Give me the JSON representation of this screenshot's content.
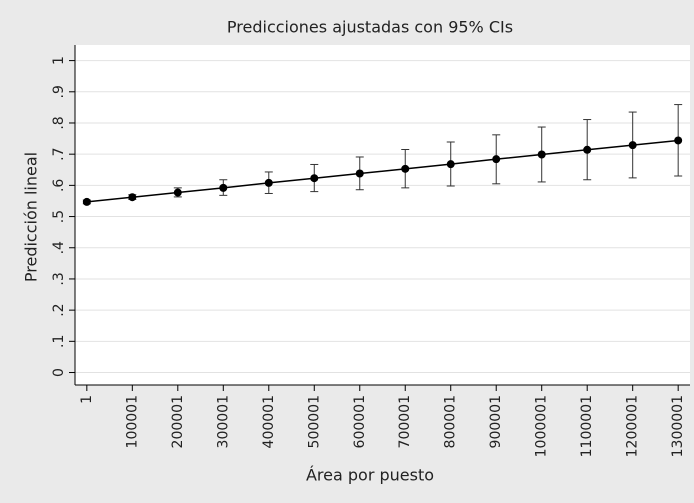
{
  "chart_data": {
    "type": "line",
    "title": "Predicciones ajustadas con 95% CIs",
    "xlabel": "Área por puesto",
    "ylabel": "Predicción lineal",
    "x": [
      1,
      100001,
      200001,
      300001,
      400001,
      500001,
      600001,
      700001,
      800001,
      900001,
      1000001,
      1100001,
      1200001,
      1300001
    ],
    "values": [
      0.547,
      0.562,
      0.577,
      0.592,
      0.608,
      0.623,
      0.638,
      0.653,
      0.668,
      0.684,
      0.699,
      0.714,
      0.729,
      0.744
    ],
    "lower": [
      0.541,
      0.555,
      0.563,
      0.568,
      0.574,
      0.58,
      0.586,
      0.592,
      0.598,
      0.605,
      0.611,
      0.618,
      0.624,
      0.63
    ],
    "upper": [
      0.553,
      0.57,
      0.592,
      0.618,
      0.643,
      0.667,
      0.691,
      0.715,
      0.739,
      0.762,
      0.787,
      0.811,
      0.835,
      0.859
    ],
    "color": "#000000",
    "xlim": [
      -26000,
      1326000
    ],
    "ylim": [
      -0.04,
      1.05
    ],
    "xticks": [
      1,
      100001,
      200001,
      300001,
      400001,
      500001,
      600001,
      700001,
      800001,
      900001,
      1000001,
      1100001,
      1200001,
      1300001
    ],
    "yticks": [
      0,
      {
        "value": 0.1,
        "label": ".1"
      },
      {
        "value": 0.2,
        "label": ".2"
      },
      {
        "value": 0.3,
        "label": ".3"
      },
      {
        "value": 0.4,
        "label": ".4"
      },
      {
        "value": 0.5,
        "label": ".5"
      },
      {
        "value": 0.6,
        "label": ".6"
      },
      {
        "value": 0.7,
        "label": ".7"
      },
      {
        "value": 0.8,
        "label": ".8"
      },
      {
        "value": 0.9,
        "label": ".9"
      },
      1
    ],
    "grid": true
  }
}
